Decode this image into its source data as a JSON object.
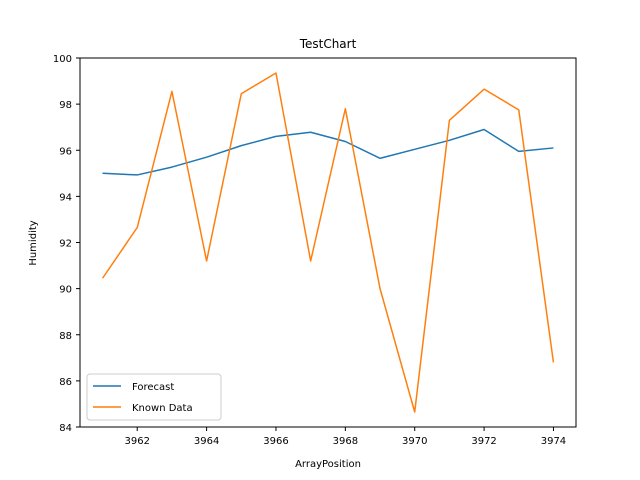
{
  "chart_data": {
    "type": "line",
    "title": "TestChart",
    "xlabel": "ArrayPosition",
    "ylabel": "Humidity",
    "xlim": [
      3960.35,
      3974.65
    ],
    "ylim": [
      84,
      100
    ],
    "xticks": [
      3962,
      3964,
      3966,
      3968,
      3970,
      3972,
      3974
    ],
    "yticks": [
      84,
      86,
      88,
      90,
      92,
      94,
      96,
      98,
      100
    ],
    "grid": false,
    "legend_position": "lower-left",
    "x": [
      3961,
      3962,
      3963,
      3964,
      3965,
      3966,
      3967,
      3968,
      3969,
      3970,
      3971,
      3972,
      3973,
      3974
    ],
    "series": [
      {
        "name": "Forecast",
        "color": "#1f77b4",
        "values": [
          95.0,
          94.93,
          95.27,
          95.7,
          96.2,
          96.6,
          96.78,
          96.38,
          95.65,
          96.04,
          96.43,
          96.9,
          95.95,
          96.1
        ]
      },
      {
        "name": "Known Data",
        "color": "#ff7f0e",
        "values": [
          90.45,
          92.65,
          98.55,
          91.2,
          98.45,
          99.35,
          91.2,
          97.8,
          90.0,
          84.65,
          97.3,
          98.65,
          97.75,
          86.8
        ]
      }
    ]
  }
}
